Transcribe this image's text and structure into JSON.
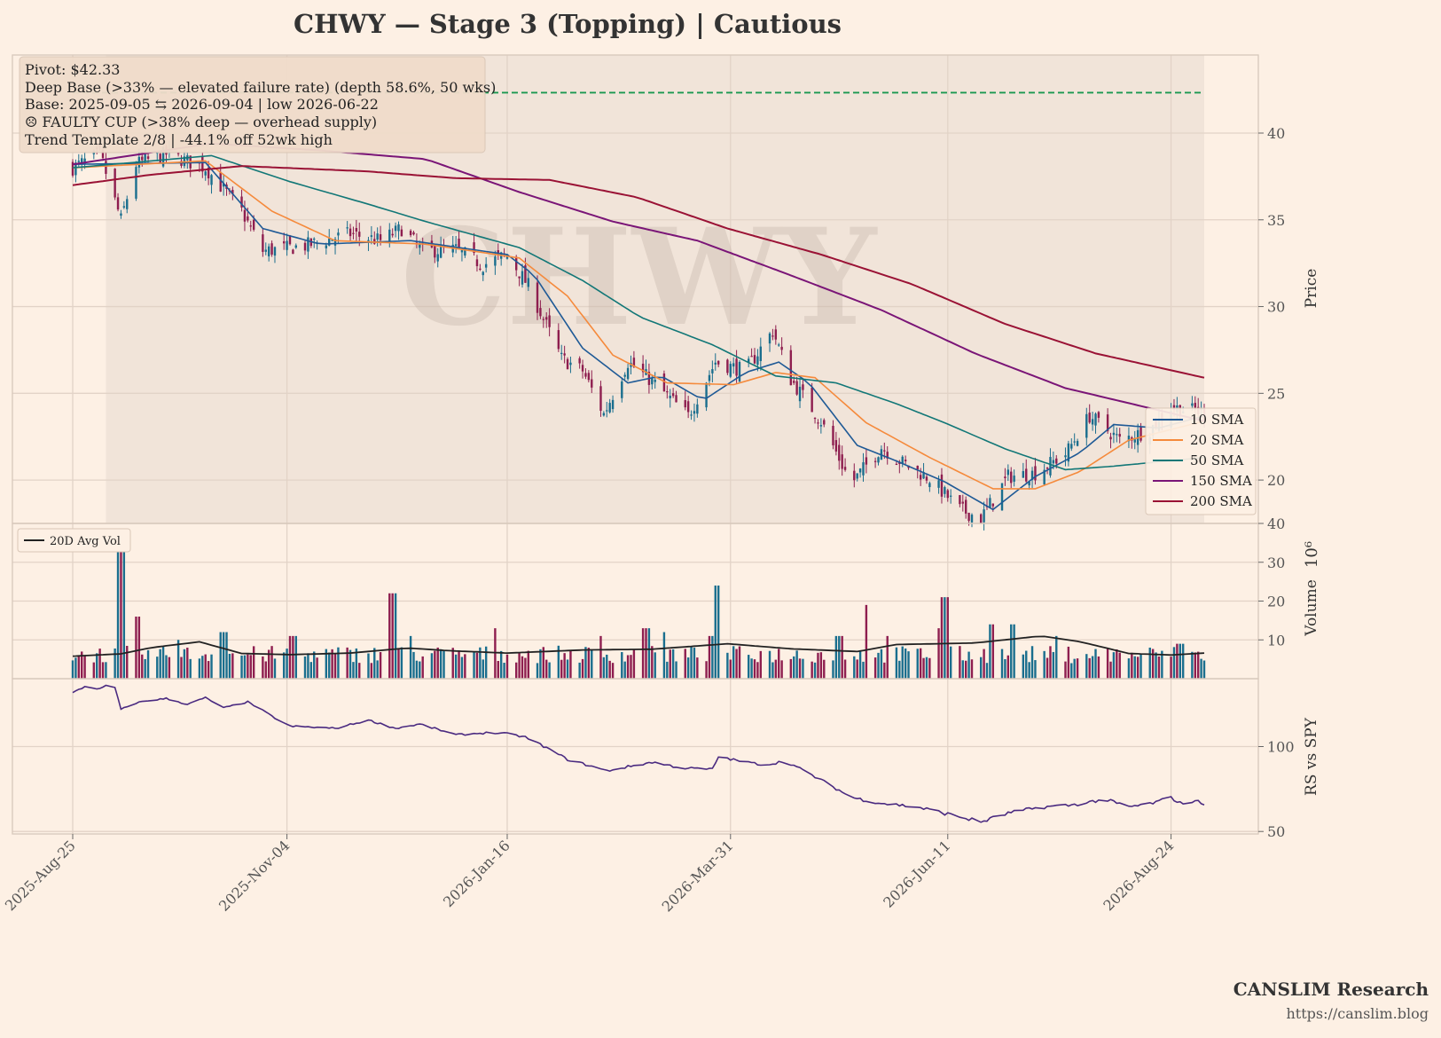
{
  "title": "CHWY  —  Stage 3 (Topping)  |  Cautious",
  "watermark": "CHWY",
  "annotation_box": {
    "lines": [
      "Pivot: $42.33",
      "Deep Base (>33% — elevated failure rate)  (depth 58.6%, 50 wks)",
      "Base: 2025-09-05 ⇆ 2026-09-04  |  low 2026-06-22",
      "☹ FAULTY CUP (>38% deep — overhead supply)",
      "Trend Template 2/8  |  -44.1% off 52wk high"
    ]
  },
  "footer": {
    "brand": "CANSLIM Research",
    "url": "https://canslim.blog"
  },
  "colors": {
    "background": "#fdf0e4",
    "base_shade": "#f1e4d9",
    "up_candle": "#1a6e8e",
    "down_candle": "#8e1e4f",
    "sma10": "#1f5a96",
    "sma20": "#f58a3c",
    "sma50": "#127777",
    "sma150": "#7a1577",
    "sma200": "#9a1235",
    "pivot_line": "#1a9850",
    "avg_vol": "#222222",
    "rs_line": "#4a2a80",
    "grid": "#e2d3c7"
  },
  "chart_data": [
    {
      "type": "candlestick",
      "panel": "price",
      "ylabel": "Price",
      "ylim": [
        17.5,
        44.5
      ],
      "yticks": [
        20,
        25,
        30,
        35,
        40
      ],
      "x_tick_labels": [
        "2025-Aug-25",
        "2025-Nov-04",
        "2026-Jan-16",
        "2026-Mar-31",
        "2026-Jun-11",
        "2026-Aug-24"
      ],
      "x_range": [
        "2025-08-25",
        "2026-09-04"
      ],
      "pivot": 42.33,
      "base_start": "2025-09-05",
      "base_end": "2026-09-04",
      "base_low_date": "2026-06-22",
      "close_anchors": [
        [
          "2025-08-25",
          38.0
        ],
        [
          "2025-09-03",
          38.8
        ],
        [
          "2025-09-10",
          35.0
        ],
        [
          "2025-09-15",
          38.2
        ],
        [
          "2025-09-25",
          38.8
        ],
        [
          "2025-10-08",
          38.0
        ],
        [
          "2025-10-20",
          35.5
        ],
        [
          "2025-10-27",
          33.2
        ],
        [
          "2025-11-10",
          33.5
        ],
        [
          "2025-11-25",
          34.2
        ],
        [
          "2025-12-05",
          33.8
        ],
        [
          "2025-12-12",
          34.5
        ],
        [
          "2025-12-19",
          33.2
        ],
        [
          "2025-12-30",
          33.3
        ],
        [
          "2026-01-08",
          32.4
        ],
        [
          "2026-01-16",
          33.0
        ],
        [
          "2026-01-23",
          31.2
        ],
        [
          "2026-02-03",
          27.0
        ],
        [
          "2026-02-10",
          26.3
        ],
        [
          "2026-02-17",
          23.8
        ],
        [
          "2026-02-25",
          26.8
        ],
        [
          "2026-03-05",
          25.7
        ],
        [
          "2026-03-17",
          23.7
        ],
        [
          "2026-03-26",
          26.8
        ],
        [
          "2026-04-05",
          26.3
        ],
        [
          "2026-04-14",
          28.6
        ],
        [
          "2026-04-20",
          25.8
        ],
        [
          "2026-04-30",
          23.4
        ],
        [
          "2026-05-10",
          19.8
        ],
        [
          "2026-05-20",
          21.9
        ],
        [
          "2026-05-27",
          21.0
        ],
        [
          "2026-06-05",
          20.1
        ],
        [
          "2026-06-15",
          18.3
        ],
        [
          "2026-06-22",
          17.8
        ],
        [
          "2026-07-01",
          20.2
        ],
        [
          "2026-07-10",
          20.4
        ],
        [
          "2026-07-20",
          21.5
        ],
        [
          "2026-07-28",
          23.7
        ],
        [
          "2026-08-07",
          22.3
        ],
        [
          "2026-08-17",
          22.9
        ],
        [
          "2026-08-24",
          24.2
        ],
        [
          "2026-09-04",
          23.9
        ]
      ],
      "series": [
        {
          "name": "10 SMA",
          "anchors": [
            [
              "2025-08-25",
              38.2
            ],
            [
              "2025-10-08",
              38.3
            ],
            [
              "2025-10-27",
              34.5
            ],
            [
              "2025-11-15",
              33.6
            ],
            [
              "2025-12-15",
              33.8
            ],
            [
              "2026-01-16",
              33.0
            ],
            [
              "2026-01-25",
              31.8
            ],
            [
              "2026-02-10",
              27.6
            ],
            [
              "2026-02-25",
              25.6
            ],
            [
              "2026-03-08",
              26.0
            ],
            [
              "2026-03-22",
              24.6
            ],
            [
              "2026-04-05",
              26.2
            ],
            [
              "2026-04-16",
              26.8
            ],
            [
              "2026-04-26",
              25.6
            ],
            [
              "2026-05-12",
              22.0
            ],
            [
              "2026-05-25",
              21.1
            ],
            [
              "2026-06-10",
              19.9
            ],
            [
              "2026-06-26",
              18.3
            ],
            [
              "2026-07-10",
              20.2
            ],
            [
              "2026-07-25",
              21.6
            ],
            [
              "2026-08-05",
              23.2
            ],
            [
              "2026-08-20",
              23.0
            ],
            [
              "2026-09-04",
              23.7
            ]
          ]
        },
        {
          "name": "20 SMA",
          "anchors": [
            [
              "2025-08-25",
              38.0
            ],
            [
              "2025-10-08",
              38.4
            ],
            [
              "2025-10-30",
              35.5
            ],
            [
              "2025-11-20",
              33.8
            ],
            [
              "2025-12-20",
              33.6
            ],
            [
              "2026-01-20",
              32.8
            ],
            [
              "2026-02-05",
              30.6
            ],
            [
              "2026-02-20",
              27.2
            ],
            [
              "2026-03-10",
              25.6
            ],
            [
              "2026-04-01",
              25.5
            ],
            [
              "2026-04-15",
              26.2
            ],
            [
              "2026-04-28",
              25.9
            ],
            [
              "2026-05-15",
              23.3
            ],
            [
              "2026-06-05",
              21.3
            ],
            [
              "2026-06-26",
              19.5
            ],
            [
              "2026-07-10",
              19.5
            ],
            [
              "2026-07-25",
              20.5
            ],
            [
              "2026-08-10",
              22.3
            ],
            [
              "2026-09-04",
              23.4
            ]
          ]
        },
        {
          "name": "50 SMA",
          "anchors": [
            [
              "2025-08-25",
              38.0
            ],
            [
              "2025-10-10",
              38.7
            ],
            [
              "2025-11-05",
              37.2
            ],
            [
              "2025-12-01",
              35.9
            ],
            [
              "2025-12-20",
              34.9
            ],
            [
              "2026-01-20",
              33.4
            ],
            [
              "2026-02-10",
              31.5
            ],
            [
              "2026-03-01",
              29.4
            ],
            [
              "2026-03-25",
              27.8
            ],
            [
              "2026-04-15",
              26.0
            ],
            [
              "2026-05-05",
              25.6
            ],
            [
              "2026-05-25",
              24.4
            ],
            [
              "2026-06-10",
              23.3
            ],
            [
              "2026-06-30",
              21.8
            ],
            [
              "2026-07-20",
              20.6
            ],
            [
              "2026-08-05",
              20.8
            ],
            [
              "2026-09-04",
              21.3
            ]
          ]
        },
        {
          "name": "150 SMA",
          "anchors": [
            [
              "2025-08-25",
              38.2
            ],
            [
              "2025-10-10",
              39.4
            ],
            [
              "2025-11-15",
              39.0
            ],
            [
              "2025-12-20",
              38.5
            ],
            [
              "2026-01-20",
              36.6
            ],
            [
              "2026-02-20",
              34.9
            ],
            [
              "2026-03-20",
              33.8
            ],
            [
              "2026-04-20",
              31.8
            ],
            [
              "2026-05-20",
              29.8
            ],
            [
              "2026-06-20",
              27.3
            ],
            [
              "2026-07-20",
              25.3
            ],
            [
              "2026-09-04",
              23.4
            ]
          ]
        },
        {
          "name": "200 SMA",
          "anchors": [
            [
              "2025-08-25",
              37.0
            ],
            [
              "2025-09-20",
              37.6
            ],
            [
              "2025-10-20",
              38.1
            ],
            [
              "2025-11-30",
              37.8
            ],
            [
              "2025-12-30",
              37.4
            ],
            [
              "2026-01-30",
              37.3
            ],
            [
              "2026-02-28",
              36.3
            ],
            [
              "2026-03-30",
              34.5
            ],
            [
              "2026-04-30",
              33.0
            ],
            [
              "2026-05-30",
              31.3
            ],
            [
              "2026-06-30",
              29.0
            ],
            [
              "2026-07-30",
              27.3
            ],
            [
              "2026-09-04",
              25.9
            ]
          ]
        }
      ],
      "legend": [
        "10 SMA",
        "20 SMA",
        "50 SMA",
        "150 SMA",
        "200 SMA"
      ],
      "legend_position": "lower-right"
    },
    {
      "type": "bar",
      "panel": "volume",
      "ylabel": "Volume",
      "scale_label": "10⁶",
      "ylim": [
        0,
        40
      ],
      "yticks": [
        10,
        20,
        30,
        40
      ],
      "spikes": [
        [
          "2025-09-10",
          36
        ],
        [
          "2025-09-15",
          16
        ],
        [
          "2025-09-28",
          10
        ],
        [
          "2025-10-14",
          12
        ],
        [
          "2025-11-06",
          11
        ],
        [
          "2025-12-09",
          22
        ],
        [
          "2025-12-14",
          11
        ],
        [
          "2026-01-11",
          13
        ],
        [
          "2026-02-15",
          11
        ],
        [
          "2026-03-03",
          13
        ],
        [
          "2026-03-08",
          12
        ],
        [
          "2026-03-27",
          24
        ],
        [
          "2026-03-25",
          11
        ],
        [
          "2026-05-06",
          11
        ],
        [
          "2026-05-16",
          19
        ],
        [
          "2026-05-23",
          11
        ],
        [
          "2026-06-08",
          13
        ],
        [
          "2026-06-10",
          21
        ],
        [
          "2026-06-26",
          14
        ],
        [
          "2026-07-03",
          14
        ],
        [
          "2026-07-18",
          11
        ],
        [
          "2026-08-27",
          9
        ]
      ],
      "series": [
        {
          "name": "20D Avg Vol",
          "anchors": [
            [
              "2025-08-25",
              5.8
            ],
            [
              "2025-09-10",
              6.4
            ],
            [
              "2025-09-20",
              8.0
            ],
            [
              "2025-10-06",
              9.5
            ],
            [
              "2025-10-20",
              6.5
            ],
            [
              "2025-11-05",
              6.2
            ],
            [
              "2025-11-25",
              6.6
            ],
            [
              "2025-12-14",
              7.9
            ],
            [
              "2025-12-28",
              7.2
            ],
            [
              "2026-01-16",
              6.6
            ],
            [
              "2026-02-10",
              7.4
            ],
            [
              "2026-03-05",
              7.6
            ],
            [
              "2026-03-30",
              9.0
            ],
            [
              "2026-04-20",
              7.7
            ],
            [
              "2026-05-12",
              7.0
            ],
            [
              "2026-05-25",
              8.8
            ],
            [
              "2026-06-20",
              9.2
            ],
            [
              "2026-07-12",
              11.0
            ],
            [
              "2026-07-25",
              9.5
            ],
            [
              "2026-08-10",
              6.5
            ],
            [
              "2026-08-24",
              6.1
            ],
            [
              "2026-09-04",
              6.6
            ]
          ]
        }
      ],
      "legend": [
        "20D Avg Vol"
      ],
      "legend_position": "top-left"
    },
    {
      "type": "line",
      "panel": "rs",
      "ylabel": "RS vs SPY",
      "yscale": "log",
      "ylim": [
        49,
        174
      ],
      "yticks": [
        50,
        100
      ],
      "series": [
        {
          "name": "RS vs SPY",
          "anchors": [
            [
              "2025-08-25",
              155
            ],
            [
              "2025-08-29",
              163
            ],
            [
              "2025-09-03",
              160
            ],
            [
              "2025-09-06",
              166
            ],
            [
              "2025-09-08",
              162
            ],
            [
              "2025-09-10",
              135
            ],
            [
              "2025-09-14",
              142
            ],
            [
              "2025-09-18",
              145
            ],
            [
              "2025-09-25",
              148
            ],
            [
              "2025-10-02",
              141
            ],
            [
              "2025-10-08",
              149
            ],
            [
              "2025-10-14",
              137
            ],
            [
              "2025-10-22",
              144
            ],
            [
              "2025-10-30",
              128
            ],
            [
              "2025-11-05",
              118
            ],
            [
              "2025-11-20",
              116
            ],
            [
              "2025-12-01",
              124
            ],
            [
              "2025-12-10",
              116
            ],
            [
              "2025-12-18",
              120
            ],
            [
              "2025-12-30",
              110
            ],
            [
              "2026-01-10",
              112
            ],
            [
              "2026-01-16",
              111
            ],
            [
              "2026-01-22",
              108
            ],
            [
              "2026-02-05",
              90
            ],
            [
              "2026-02-18",
              82
            ],
            [
              "2026-03-05",
              88
            ],
            [
              "2026-03-15",
              84
            ],
            [
              "2026-03-25",
              83
            ],
            [
              "2026-03-27",
              92
            ],
            [
              "2026-04-05",
              88
            ],
            [
              "2026-04-12",
              86
            ],
            [
              "2026-04-18",
              89
            ],
            [
              "2026-04-28",
              78
            ],
            [
              "2026-05-10",
              66
            ],
            [
              "2026-05-20",
              63
            ],
            [
              "2026-06-01",
              61
            ],
            [
              "2026-06-10",
              58
            ],
            [
              "2026-06-22",
              54
            ],
            [
              "2026-07-01",
              58
            ],
            [
              "2026-07-12",
              61
            ],
            [
              "2026-07-22",
              62
            ],
            [
              "2026-08-02",
              65
            ],
            [
              "2026-08-10",
              61
            ],
            [
              "2026-08-18",
              63
            ],
            [
              "2026-08-24",
              66
            ],
            [
              "2026-08-27",
              63
            ],
            [
              "2026-09-01",
              64
            ],
            [
              "2026-09-04",
              63
            ]
          ]
        }
      ]
    }
  ]
}
